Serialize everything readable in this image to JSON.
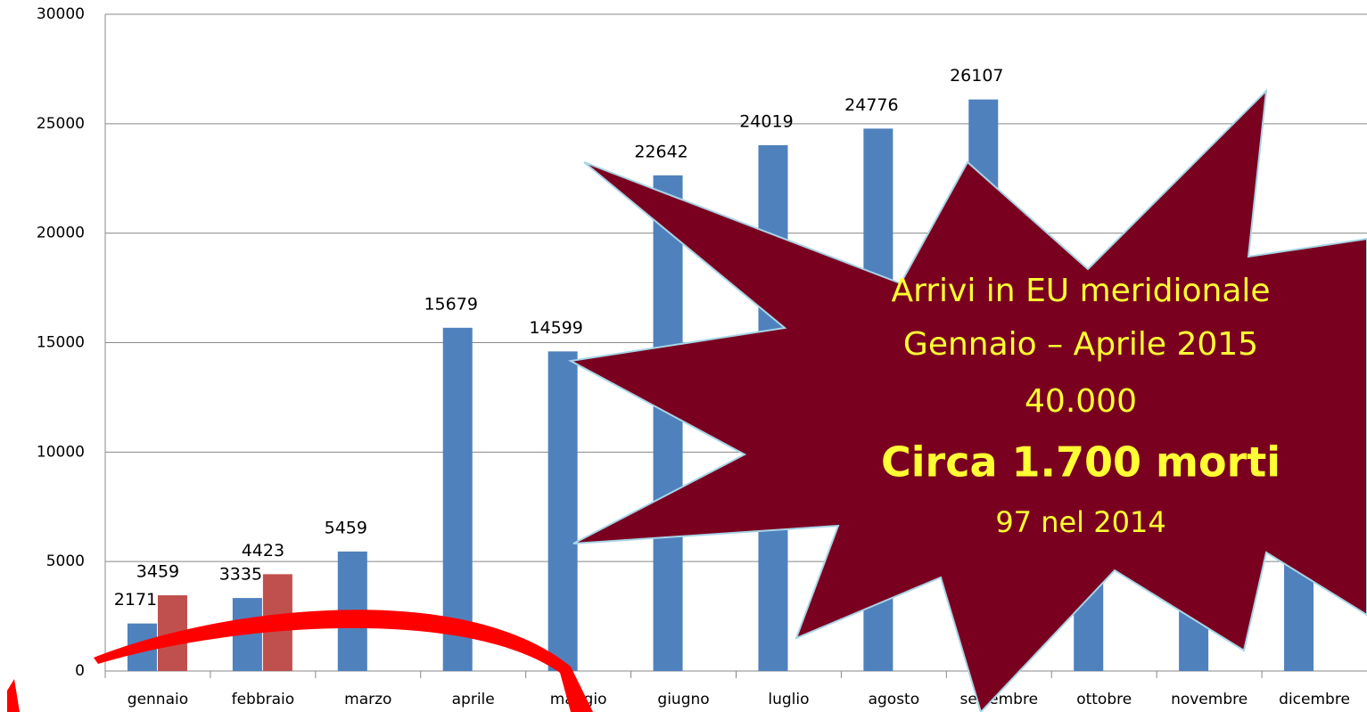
{
  "chart_data": {
    "type": "bar",
    "categories": [
      "gennaio",
      "febbraio",
      "marzo",
      "aprile",
      "maggio",
      "giugno",
      "luglio",
      "agosto",
      "settembre",
      "ottobre",
      "novembre",
      "dicembre"
    ],
    "series": [
      {
        "color": "#4f81bd",
        "values": [
          2171,
          3335,
          5459,
          15679,
          14599,
          22642,
          24019,
          24776,
          26107,
          17000,
          15000,
          9000
        ]
      },
      {
        "color": "#c0504d",
        "values": [
          3459,
          4423,
          null,
          null,
          null,
          null,
          null,
          null,
          null,
          null,
          null,
          null
        ]
      }
    ],
    "ylim": [
      0,
      30000
    ],
    "yticks": [
      0,
      5000,
      10000,
      15000,
      20000,
      25000,
      30000
    ],
    "grid": true,
    "annotations": [
      "Arrivi in EU meridionale",
      "Gennaio – Aprile 2015",
      "40.000",
      "Circa 1.700 morti",
      "97 nel 2014"
    ]
  }
}
